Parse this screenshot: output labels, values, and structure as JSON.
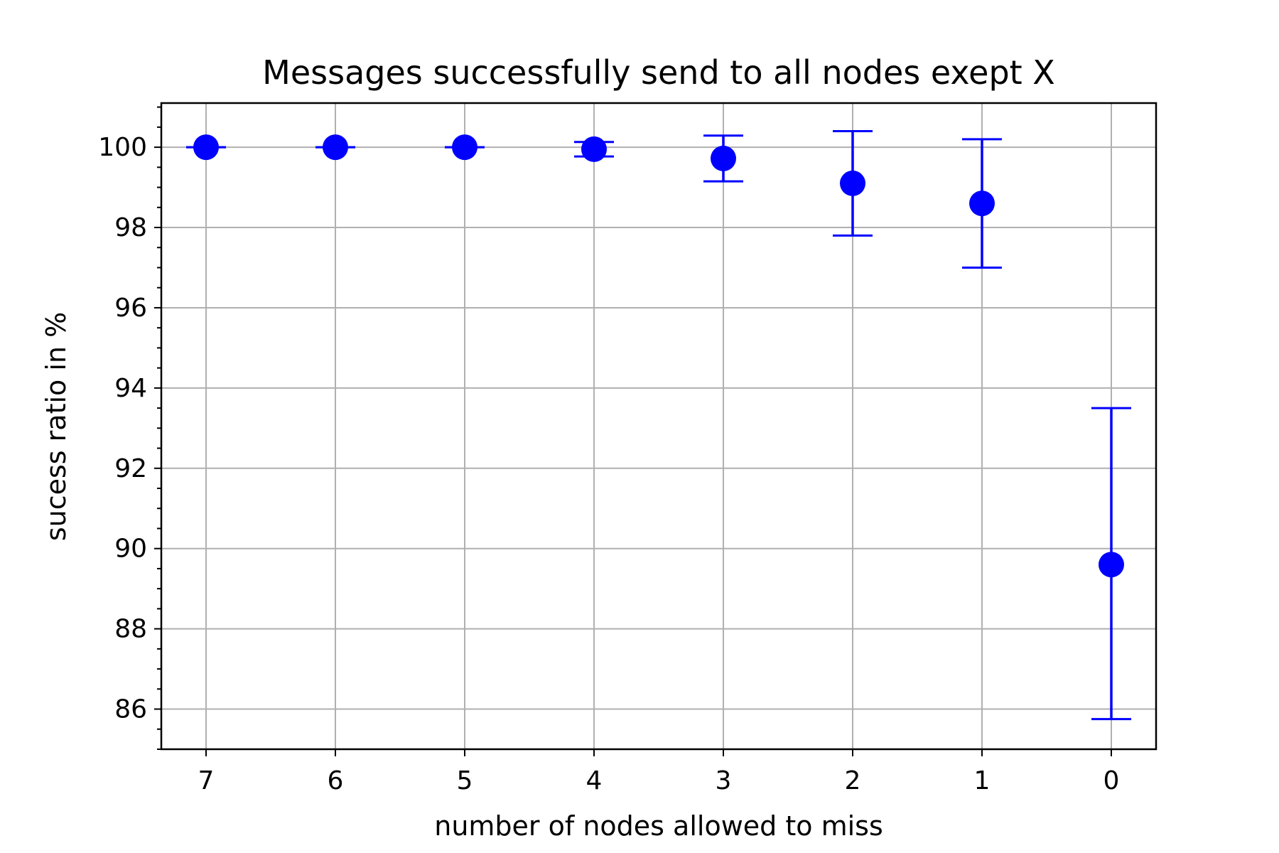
{
  "chart_data": {
    "type": "errorbar",
    "title": "Messages successfully send to all nodes exept X",
    "xlabel": "number of nodes allowed to miss",
    "ylabel": "sucess ratio in %",
    "categories": [
      "7",
      "6",
      "5",
      "4",
      "3",
      "2",
      "1",
      "0"
    ],
    "series": [
      {
        "name": "success ratio",
        "values": [
          100.0,
          100.0,
          100.0,
          99.95,
          99.72,
          99.1,
          98.6,
          89.6
        ],
        "err_low": [
          0.0,
          0.0,
          0.0,
          0.18,
          0.57,
          1.3,
          1.6,
          3.85
        ],
        "err_high": [
          0.0,
          0.0,
          0.0,
          0.18,
          0.57,
          1.3,
          1.6,
          3.9
        ]
      }
    ],
    "ylim": [
      85.0,
      101.1
    ],
    "yticks": [
      "86",
      "88",
      "90",
      "92",
      "94",
      "96",
      "98",
      "100"
    ],
    "grid": true,
    "color": "#0000ff"
  }
}
